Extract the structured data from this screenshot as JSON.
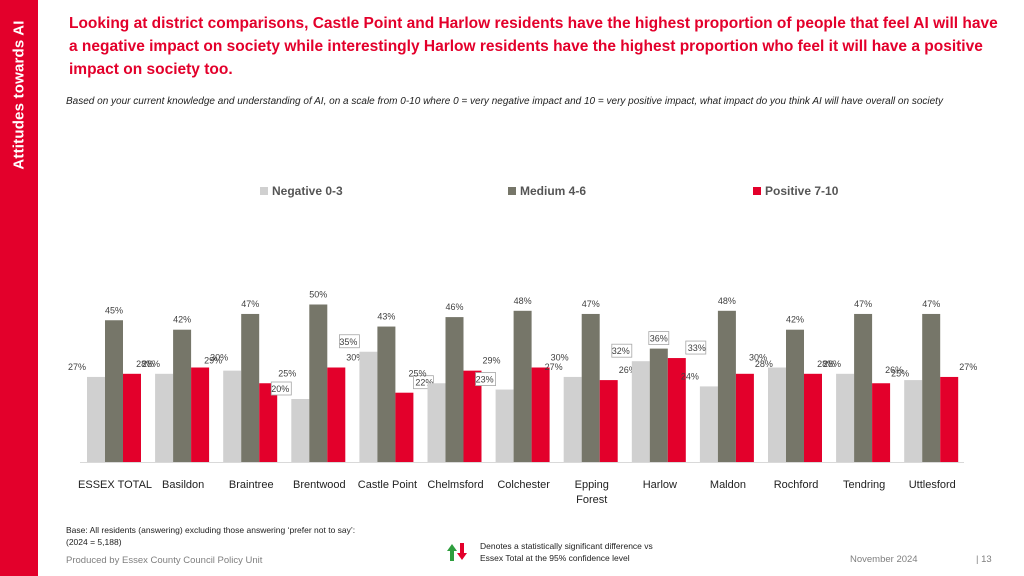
{
  "sidebar": {
    "title": "Attitudes towards AI"
  },
  "headline": "Looking at district comparisons, Castle Point and Harlow residents have the highest proportion of people that feel AI will have a negative impact on society while interestingly Harlow residents have the highest proportion who feel it will have a positive impact on society too.",
  "question": "Based on your current knowledge and understanding of AI, on a scale from 0-10 where 0 = very negative impact and 10 = very positive impact, what impact do you think AI will have overall on society",
  "colors": {
    "accent": "#e3002b",
    "negative": "#d0d0d0",
    "medium": "#767669",
    "positive": "#e3002b"
  },
  "chart_data": {
    "type": "bar",
    "categories": [
      "ESSEX TOTAL",
      "Basildon",
      "Braintree",
      "Brentwood",
      "Castle Point",
      "Chelmsford",
      "Colchester",
      "Epping Forest",
      "Harlow",
      "Maldon",
      "Rochford",
      "Tendring",
      "Uttlesford"
    ],
    "series": [
      {
        "name": "Negative 0-3",
        "values": [
          27,
          28,
          29,
          20,
          35,
          25,
          23,
          27,
          32,
          24,
          30,
          28,
          26
        ]
      },
      {
        "name": "Medium 4-6",
        "values": [
          45,
          42,
          47,
          50,
          43,
          46,
          48,
          47,
          36,
          48,
          42,
          47,
          47
        ]
      },
      {
        "name": "Positive 7-10",
        "values": [
          28,
          30,
          25,
          30,
          22,
          29,
          30,
          26,
          33,
          28,
          28,
          25,
          27
        ]
      }
    ],
    "highlighted": [
      {
        "category": "Brentwood",
        "series": "Negative 0-3"
      },
      {
        "category": "Castle Point",
        "series": "Negative 0-3"
      },
      {
        "category": "Castle Point",
        "series": "Positive 7-10"
      },
      {
        "category": "Colchester",
        "series": "Negative 0-3"
      },
      {
        "category": "Harlow",
        "series": "Negative 0-3"
      },
      {
        "category": "Harlow",
        "series": "Medium 4-6"
      },
      {
        "category": "Harlow",
        "series": "Positive 7-10"
      }
    ],
    "value_suffix": "%",
    "ylim": [
      0,
      55
    ],
    "legend_position": "top",
    "grid": false
  },
  "notes": {
    "base": "Base: All residents (answering) excluding those answering ‘prefer not to say’:",
    "base_n": "(2024 = 5,188)",
    "significance_line1": "Denotes a statistically significant difference vs",
    "significance_line2": "Essex Total at the 95% confidence level"
  },
  "footer": {
    "producer": "Produced by Essex County Council Policy Unit",
    "date": "November 2024",
    "page": "|  13"
  }
}
